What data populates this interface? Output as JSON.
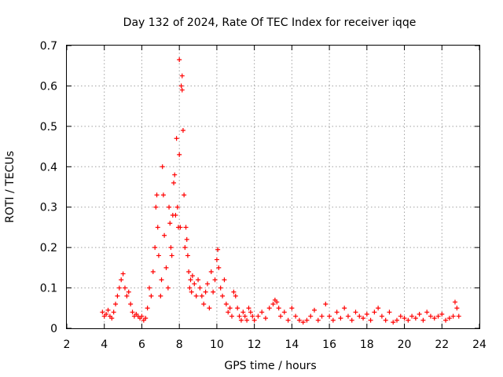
{
  "chart_data": {
    "type": "scatter",
    "title": "Day 132 of 2024, Rate Of TEC Index for receiver iqqe",
    "xlabel": "GPS time / hours",
    "ylabel": "ROTI / TECUs",
    "xlim": [
      2,
      24
    ],
    "ylim": [
      0,
      0.7
    ],
    "x_ticks": [
      2,
      4,
      6,
      8,
      10,
      12,
      14,
      16,
      18,
      20,
      22,
      24
    ],
    "x_tick_labels": [
      "2",
      "4",
      "6",
      "8",
      "10",
      "12",
      "14",
      "16",
      "18",
      "20",
      "22",
      "24"
    ],
    "y_ticks": [
      0,
      0.1,
      0.2,
      0.3,
      0.4,
      0.5,
      0.6,
      0.7
    ],
    "y_tick_labels": [
      "0",
      "0.1",
      "0.2",
      "0.3",
      "0.4",
      "0.5",
      "0.6",
      "0.7"
    ],
    "grid": true,
    "marker": "+",
    "color": "#ff0000",
    "series": [
      {
        "name": "ROTI",
        "x": [
          3.9,
          4.0,
          4.1,
          4.2,
          4.3,
          4.4,
          4.5,
          4.6,
          4.7,
          4.8,
          4.9,
          5.0,
          5.1,
          5.2,
          5.3,
          5.4,
          5.5,
          5.6,
          5.7,
          5.8,
          5.9,
          6.0,
          6.1,
          6.2,
          6.3,
          6.4,
          6.5,
          6.6,
          6.7,
          6.75,
          6.8,
          6.85,
          6.9,
          7.0,
          7.05,
          7.1,
          7.15,
          7.2,
          7.3,
          7.4,
          7.45,
          7.5,
          7.55,
          7.6,
          7.65,
          7.7,
          7.75,
          7.8,
          7.85,
          7.9,
          7.95,
          8.0,
          8.0,
          8.05,
          8.1,
          8.15,
          8.15,
          8.2,
          8.25,
          8.3,
          8.35,
          8.4,
          8.45,
          8.5,
          8.55,
          8.6,
          8.65,
          8.7,
          8.8,
          8.9,
          9.0,
          9.1,
          9.2,
          9.3,
          9.4,
          9.5,
          9.6,
          9.7,
          9.8,
          9.9,
          10.0,
          10.05,
          10.1,
          10.2,
          10.3,
          10.4,
          10.5,
          10.6,
          10.7,
          10.8,
          10.9,
          11.0,
          11.1,
          11.2,
          11.3,
          11.4,
          11.5,
          11.6,
          11.7,
          11.8,
          11.9,
          12.0,
          12.2,
          12.4,
          12.6,
          12.8,
          13.0,
          13.1,
          13.2,
          13.3,
          13.4,
          13.6,
          13.8,
          14.0,
          14.2,
          14.4,
          14.6,
          14.8,
          15.0,
          15.2,
          15.4,
          15.6,
          15.8,
          16.0,
          16.2,
          16.4,
          16.6,
          16.8,
          17.0,
          17.2,
          17.4,
          17.6,
          17.8,
          18.0,
          18.2,
          18.4,
          18.6,
          18.8,
          19.0,
          19.2,
          19.4,
          19.6,
          19.8,
          20.0,
          20.2,
          20.4,
          20.6,
          20.8,
          21.0,
          21.2,
          21.4,
          21.6,
          21.8,
          22.0,
          22.2,
          22.4,
          22.6,
          22.7,
          22.8,
          22.9
        ],
        "y": [
          0.04,
          0.03,
          0.035,
          0.045,
          0.03,
          0.025,
          0.04,
          0.06,
          0.08,
          0.1,
          0.12,
          0.135,
          0.1,
          0.08,
          0.09,
          0.06,
          0.04,
          0.03,
          0.035,
          0.03,
          0.025,
          0.03,
          0.02,
          0.025,
          0.05,
          0.1,
          0.08,
          0.14,
          0.2,
          0.3,
          0.33,
          0.25,
          0.18,
          0.08,
          0.12,
          0.4,
          0.33,
          0.23,
          0.15,
          0.1,
          0.3,
          0.26,
          0.2,
          0.18,
          0.28,
          0.36,
          0.38,
          0.28,
          0.47,
          0.3,
          0.25,
          0.665,
          0.43,
          0.25,
          0.6,
          0.59,
          0.625,
          0.49,
          0.33,
          0.2,
          0.25,
          0.22,
          0.18,
          0.14,
          0.1,
          0.12,
          0.09,
          0.13,
          0.11,
          0.08,
          0.12,
          0.1,
          0.08,
          0.06,
          0.09,
          0.11,
          0.05,
          0.14,
          0.09,
          0.12,
          0.17,
          0.195,
          0.15,
          0.1,
          0.08,
          0.12,
          0.06,
          0.04,
          0.05,
          0.03,
          0.09,
          0.08,
          0.05,
          0.03,
          0.02,
          0.04,
          0.03,
          0.02,
          0.05,
          0.04,
          0.03,
          0.02,
          0.03,
          0.04,
          0.025,
          0.05,
          0.06,
          0.07,
          0.065,
          0.05,
          0.03,
          0.04,
          0.02,
          0.05,
          0.03,
          0.02,
          0.015,
          0.02,
          0.03,
          0.045,
          0.02,
          0.03,
          0.06,
          0.03,
          0.02,
          0.04,
          0.025,
          0.05,
          0.03,
          0.02,
          0.04,
          0.03,
          0.025,
          0.035,
          0.02,
          0.04,
          0.05,
          0.03,
          0.02,
          0.04,
          0.015,
          0.02,
          0.03,
          0.025,
          0.02,
          0.03,
          0.025,
          0.035,
          0.02,
          0.04,
          0.03,
          0.025,
          0.03,
          0.035,
          0.02,
          0.025,
          0.03,
          0.065,
          0.05,
          0.03
        ]
      }
    ]
  }
}
